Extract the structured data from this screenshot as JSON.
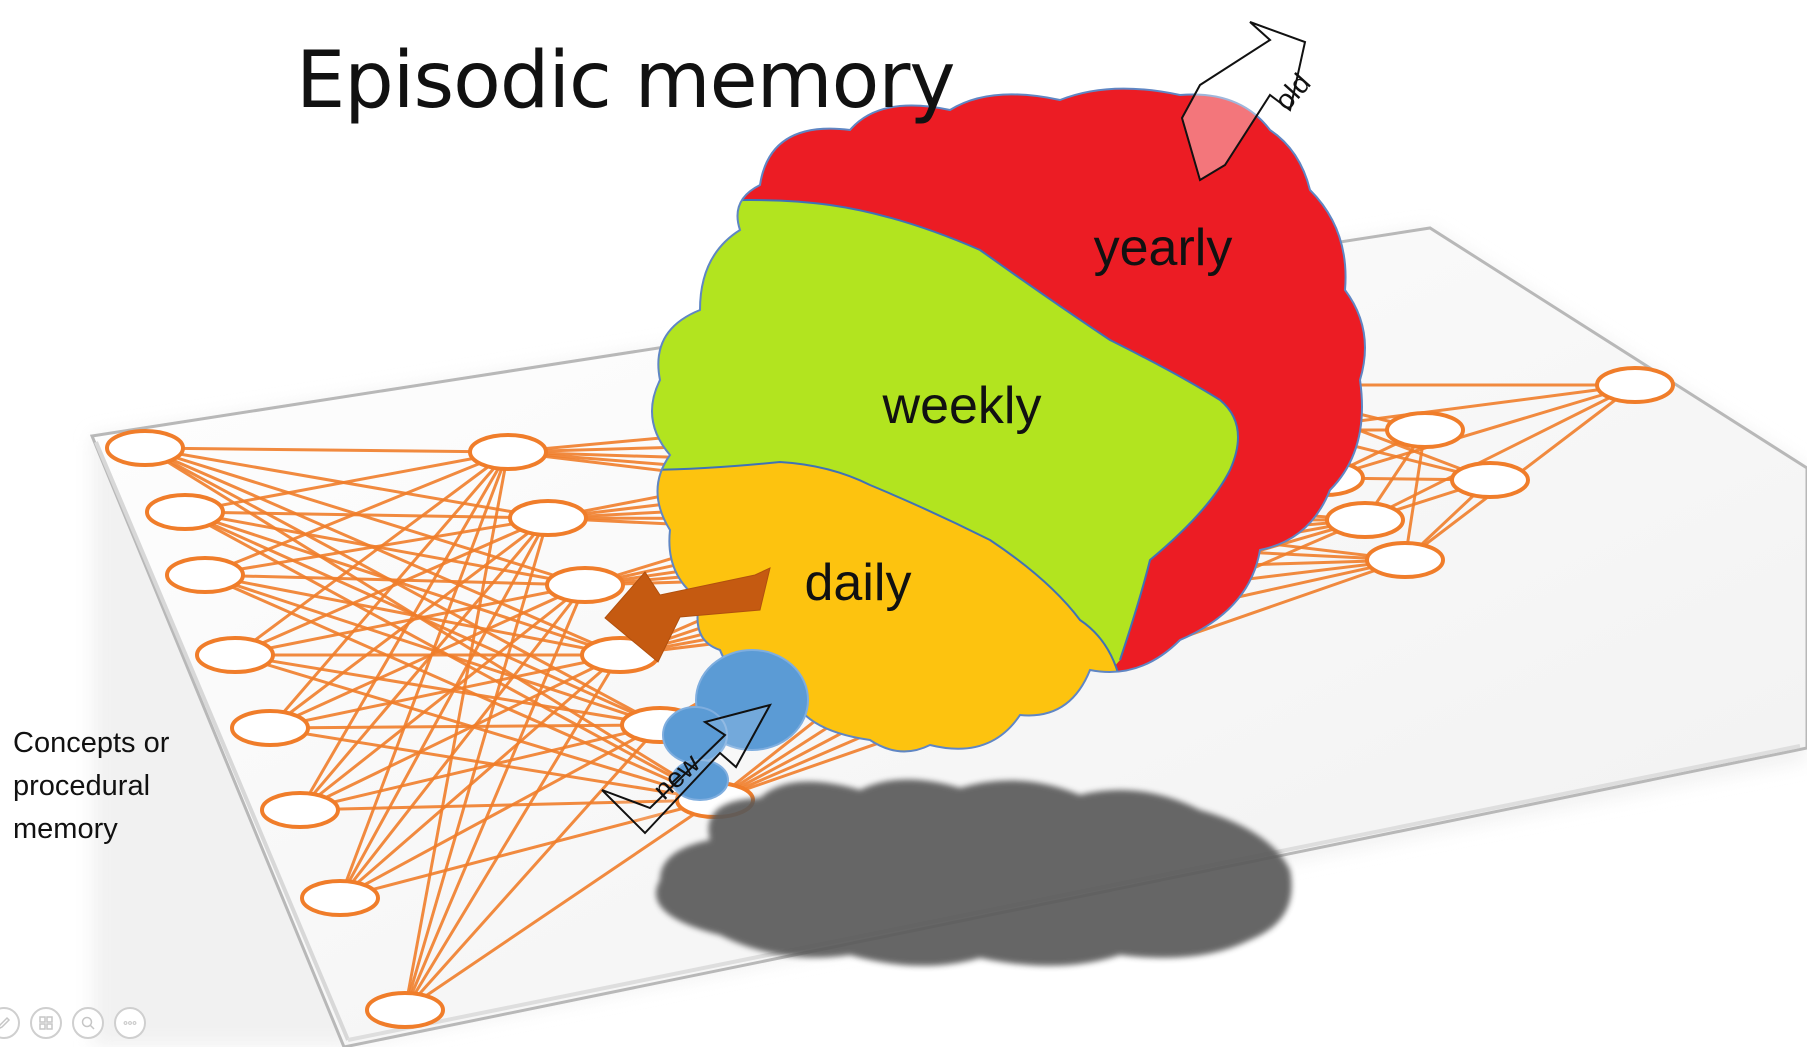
{
  "title": "Episodic memory",
  "side_label": [
    "Concepts or",
    "procedural",
    "memory"
  ],
  "regions": [
    {
      "label": "yearly",
      "color": "#ec1c24"
    },
    {
      "label": "weekly",
      "color": "#b2e41f"
    },
    {
      "label": "daily",
      "color": "#fdc30f"
    }
  ],
  "arrows": {
    "old_label": "old",
    "new_label": "new"
  },
  "colors": {
    "network": "#f07d2a",
    "recall_arrow": "#c55a11",
    "new_memory": "#5b9bd5",
    "shadow": "#5a5a5a"
  },
  "toolbar_icons": [
    "pen-icon",
    "slides-icon",
    "zoom-icon",
    "more-icon"
  ]
}
